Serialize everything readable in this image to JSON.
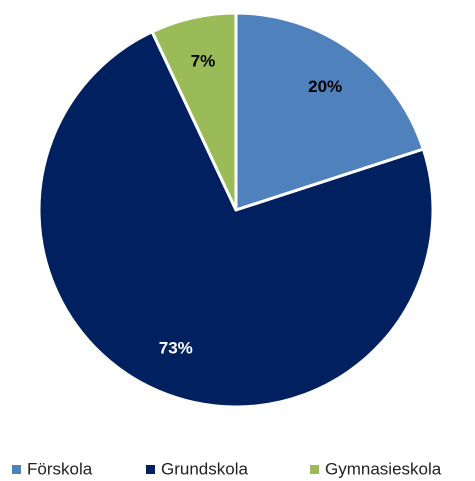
{
  "chart_data": {
    "type": "pie",
    "categories": [
      "Förskola",
      "Grundskola",
      "Gymnasieskola"
    ],
    "values": [
      20,
      73,
      7
    ],
    "value_labels": [
      "20%",
      "73%",
      "7%"
    ],
    "colors": [
      "#4f81bd",
      "#002060",
      "#9bbb59"
    ],
    "label_colors": [
      "#000000",
      "#ffffff",
      "#000000"
    ],
    "legend": "bottom"
  }
}
